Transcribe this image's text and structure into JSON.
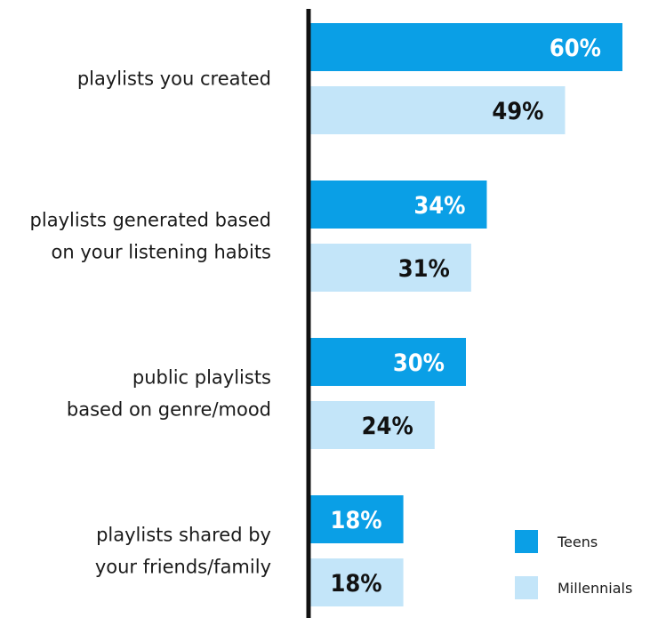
{
  "chart_data": {
    "type": "bar",
    "orientation": "horizontal",
    "categories": [
      [
        "playlists you created"
      ],
      [
        "playlists generated based",
        "on your listening habits"
      ],
      [
        "public playlists",
        "based on genre/mood"
      ],
      [
        "playlists shared by",
        "your friends/family"
      ]
    ],
    "series": [
      {
        "name": "Teens",
        "color": "#0a9fe6",
        "label_color": "#ffffff",
        "values": [
          60,
          34,
          30,
          18
        ],
        "labels": [
          "60%",
          "34%",
          "30%",
          "18%"
        ]
      },
      {
        "name": "Millennials",
        "color": "#c3e5f9",
        "label_color": "#111111",
        "values": [
          49,
          31,
          24,
          18
        ],
        "labels": [
          "49%",
          "31%",
          "24%",
          "18%"
        ]
      }
    ],
    "xlim": [
      0,
      60
    ],
    "grid": false,
    "legend_position": "bottom-right",
    "axis_color": "#111111"
  }
}
